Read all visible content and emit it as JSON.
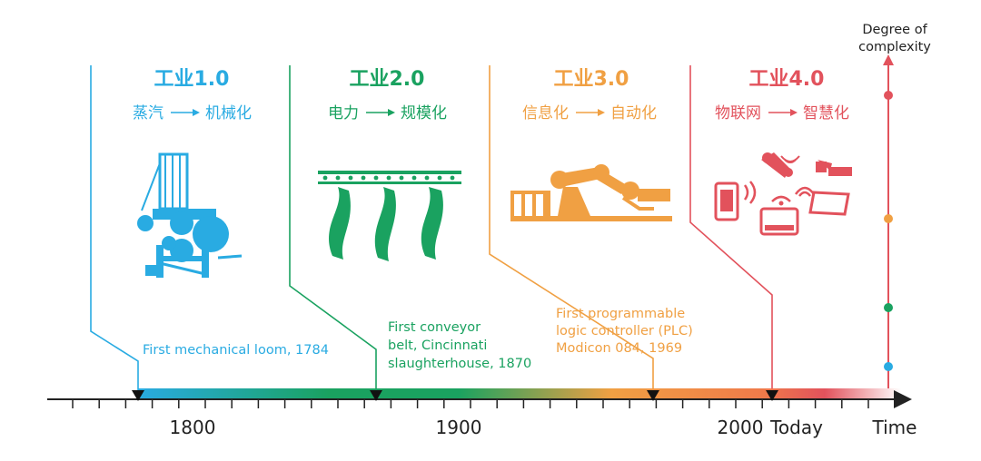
{
  "eras": [
    {
      "title": "工业1.0",
      "from": "蒸汽",
      "to": "机械化",
      "color": "#29abe2",
      "event": "First mechanical loom, 1784",
      "year": 1784,
      "icon": "steam-loom-icon"
    },
    {
      "title": "工业2.0",
      "from": "电力",
      "to": "规模化",
      "color": "#1aa260",
      "event": "First conveyor\nbelt, Cincinnati\nslaughterhouse, 1870",
      "year": 1870,
      "icon": "conveyor-belt-icon"
    },
    {
      "title": "工业3.0",
      "from": "信息化",
      "to": "自动化",
      "color": "#f0a043",
      "event": "First programmable\nlogic controller (PLC)\nModicon 084, 1969",
      "year": 1969,
      "icon": "robot-arm-icon"
    },
    {
      "title": "工业4.0",
      "from": "物联网",
      "to": "智慧化",
      "color": "#e2525c",
      "event": "",
      "year": 2015,
      "icon": "iot-devices-icon"
    }
  ],
  "timeline": {
    "tick_labels": [
      "1800",
      "1900",
      "2000",
      "Today"
    ],
    "axis_label": "Time"
  },
  "complexity_axis": {
    "label": "Degree of\ncomplexity",
    "dot_colors": [
      "#e2525c",
      "#f0a043",
      "#1aa260",
      "#29abe2"
    ]
  }
}
